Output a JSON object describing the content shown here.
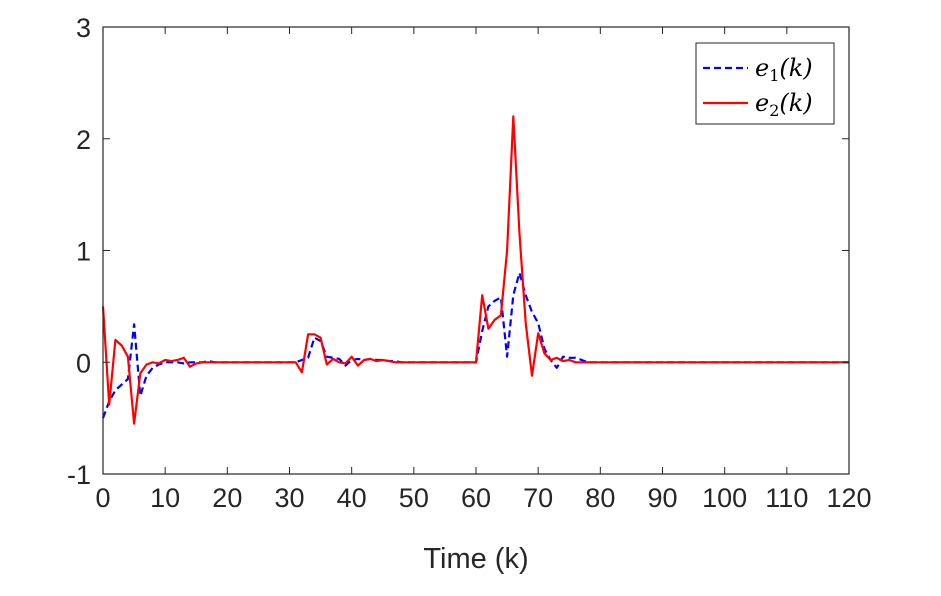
{
  "chart_data": {
    "type": "line",
    "title": "",
    "xlabel": "Time (k)",
    "ylabel": "",
    "xlim": [
      0,
      120
    ],
    "ylim": [
      -1,
      3
    ],
    "xticks": [
      0,
      10,
      20,
      30,
      40,
      50,
      60,
      70,
      80,
      90,
      100,
      110,
      120
    ],
    "yticks": [
      -1,
      0,
      1,
      2,
      3
    ],
    "grid": false,
    "legend_position": "top-right",
    "series": [
      {
        "name": "e1(k)",
        "legend": {
          "base": "e",
          "sub": "1",
          "arg": "(k)"
        },
        "color": "#0000ff",
        "style": "dashed",
        "x": [
          0,
          1,
          2,
          3,
          4,
          5,
          6,
          7,
          8,
          9,
          10,
          11,
          12,
          13,
          14,
          15,
          16,
          17,
          18,
          19,
          20,
          30,
          31,
          32,
          33,
          34,
          35,
          36,
          37,
          38,
          39,
          40,
          41,
          42,
          43,
          44,
          45,
          46,
          47,
          48,
          49,
          50,
          60,
          61,
          62,
          63,
          64,
          65,
          66,
          67,
          68,
          69,
          70,
          71,
          72,
          73,
          74,
          75,
          76,
          77,
          78,
          80,
          90,
          100,
          110,
          120
        ],
        "y": [
          -0.5,
          -0.35,
          -0.25,
          -0.2,
          -0.15,
          0.34,
          -0.3,
          -0.12,
          -0.05,
          -0.02,
          0.0,
          0.0,
          0.0,
          -0.01,
          0.0,
          0.0,
          0.0,
          0.01,
          0.0,
          0.0,
          0.0,
          0.0,
          0.0,
          0.02,
          0.04,
          0.22,
          0.19,
          0.05,
          0.04,
          0.03,
          -0.03,
          0.02,
          0.03,
          0.02,
          0.03,
          0.02,
          0.02,
          0.01,
          0.01,
          0.0,
          0.0,
          0.0,
          0.0,
          0.28,
          0.5,
          0.55,
          0.58,
          0.05,
          0.6,
          0.8,
          0.6,
          0.45,
          0.35,
          0.12,
          0.02,
          -0.05,
          0.05,
          0.04,
          0.04,
          0.02,
          0.0,
          0.0,
          0.0,
          0.0,
          0.0,
          0.0
        ]
      },
      {
        "name": "e2(k)",
        "legend": {
          "base": "e",
          "sub": "2",
          "arg": "(k)"
        },
        "color": "#ff0000",
        "style": "solid",
        "x": [
          0,
          1,
          2,
          3,
          4,
          5,
          6,
          7,
          8,
          9,
          10,
          11,
          12,
          13,
          14,
          15,
          16,
          17,
          18,
          19,
          20,
          30,
          31,
          32,
          33,
          34,
          35,
          36,
          37,
          38,
          39,
          40,
          41,
          42,
          43,
          44,
          45,
          46,
          47,
          48,
          49,
          50,
          60,
          61,
          62,
          63,
          64,
          65,
          66,
          67,
          68,
          69,
          70,
          71,
          72,
          73,
          74,
          75,
          76,
          77,
          78,
          80,
          90,
          100,
          110,
          120
        ],
        "y": [
          0.5,
          -0.38,
          0.2,
          0.15,
          0.05,
          -0.55,
          -0.1,
          -0.02,
          0.0,
          -0.01,
          0.02,
          0.01,
          0.02,
          0.04,
          -0.04,
          -0.01,
          0.0,
          0.0,
          0.0,
          0.0,
          0.0,
          0.0,
          0.0,
          -0.09,
          0.25,
          0.25,
          0.22,
          -0.02,
          0.03,
          0.0,
          -0.01,
          0.05,
          -0.03,
          0.02,
          0.03,
          0.01,
          0.02,
          0.01,
          0.0,
          0.0,
          0.0,
          0.0,
          0.0,
          0.6,
          0.3,
          0.38,
          0.42,
          1.0,
          2.2,
          1.15,
          0.35,
          -0.12,
          0.26,
          0.08,
          0.02,
          0.04,
          0.01,
          0.02,
          0.0,
          0.0,
          0.0,
          0.0,
          0.0,
          0.0,
          0.0,
          0.0
        ]
      }
    ]
  }
}
